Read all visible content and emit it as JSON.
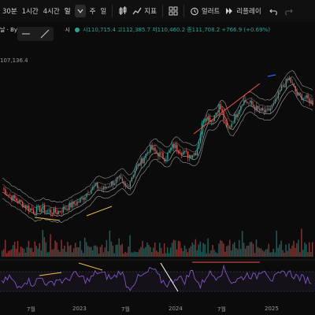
{
  "toolbar": {
    "interval_30m": "30분",
    "interval_1h": "1시간",
    "interval_4h": "4시간",
    "interval_day": "일",
    "interval_week": "주",
    "interval_menu": "일",
    "indicators_label": "지표",
    "alert_label": "얼러트",
    "replay_label": "리플레이"
  },
  "legend": {
    "symbol": "날 · Byb",
    "open_prefix": "시",
    "open_value": "시110,715.4",
    "high_value": "고112,385.7",
    "low_value": "저110,460.2",
    "close_value": "종111,708.2",
    "change_value": "+766.9 (+0.69%)"
  },
  "price_axis": {
    "top_price": "107,136.4"
  },
  "xaxis": {
    "labels": [
      "7월",
      "2023",
      "7월",
      "2024",
      "7월",
      "2025"
    ]
  },
  "colors": {
    "up": "#26a69a",
    "down": "#ef5350",
    "rsi": "#7e57c2",
    "trendline": "#ef5350",
    "background": "#0b0b0b"
  },
  "chart_data": {
    "type": "candlestick",
    "series": [
      {
        "name": "Price",
        "y": [
          38,
          32,
          28,
          24,
          20,
          22,
          20,
          19,
          22,
          25,
          28,
          35,
          40,
          37,
          42,
          45,
          38,
          52,
          60,
          70,
          66,
          62,
          72,
          68,
          64,
          67,
          96,
          92,
          104,
          84,
          95,
          108,
          105,
          100,
          98,
          104,
          118,
          125,
          112,
          110,
          106
        ]
      },
      {
        "name": "RSI",
        "y": [
          48,
          62,
          42,
          56,
          50,
          60,
          46,
          58,
          52,
          66,
          60,
          54,
          70,
          64,
          58,
          72,
          40,
          58,
          64,
          76,
          56,
          48,
          62,
          54,
          72,
          44,
          68,
          62,
          74,
          52,
          58,
          66,
          60,
          78,
          56,
          64,
          70,
          62,
          58,
          54
        ]
      }
    ]
  }
}
